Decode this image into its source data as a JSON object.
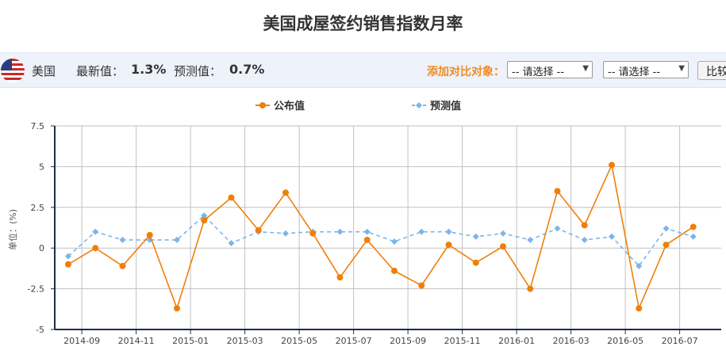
{
  "title": "美国成屋签约销售指数月率",
  "info": {
    "country": "美国",
    "latest_label": "最新值：",
    "latest_value": "1.3%",
    "forecast_label": "预测值：",
    "forecast_value": "0.7%",
    "compare_label": "添加对比对象：",
    "select1": "-- 请选择 --",
    "select2": "-- 请选择 --",
    "compare_button": "比较"
  },
  "colors": {
    "actual": "#f07f0a",
    "forecast": "#7cb5ec",
    "grid": "#c0c0c0",
    "axis": "#1f2d4d",
    "compare_label": "#f08b22"
  },
  "chart_data": {
    "type": "line",
    "ylabel": "单位：(%)",
    "ylim": [
      -5,
      7.5
    ],
    "yticks": [
      "7.5",
      "5",
      "2.5",
      "0",
      "-2.5",
      "-5"
    ],
    "xtick_labels": [
      "2014-09",
      "2014-11",
      "2015-01",
      "2015-03",
      "2015-05",
      "2015-07",
      "2015-09",
      "2015-11",
      "2016-01",
      "2016-03",
      "2016-05",
      "2016-07"
    ],
    "grid": true,
    "legend_position": "top",
    "series": [
      {
        "name": "公布值",
        "values": [
          -1.0,
          0.0,
          -1.1,
          0.8,
          -3.7,
          1.7,
          3.1,
          1.1,
          3.4,
          0.9,
          -1.8,
          0.5,
          -1.4,
          -2.3,
          0.2,
          -0.9,
          0.1,
          -2.5,
          3.5,
          1.4,
          5.1,
          -3.7,
          0.2,
          1.3
        ]
      },
      {
        "name": "预测值",
        "values": [
          -0.5,
          1.0,
          0.5,
          0.5,
          0.5,
          2.0,
          0.3,
          1.0,
          0.9,
          1.0,
          1.0,
          1.0,
          0.4,
          1.0,
          1.0,
          0.7,
          0.9,
          0.5,
          1.2,
          0.5,
          0.7,
          -1.1,
          1.2,
          0.7
        ]
      }
    ]
  }
}
